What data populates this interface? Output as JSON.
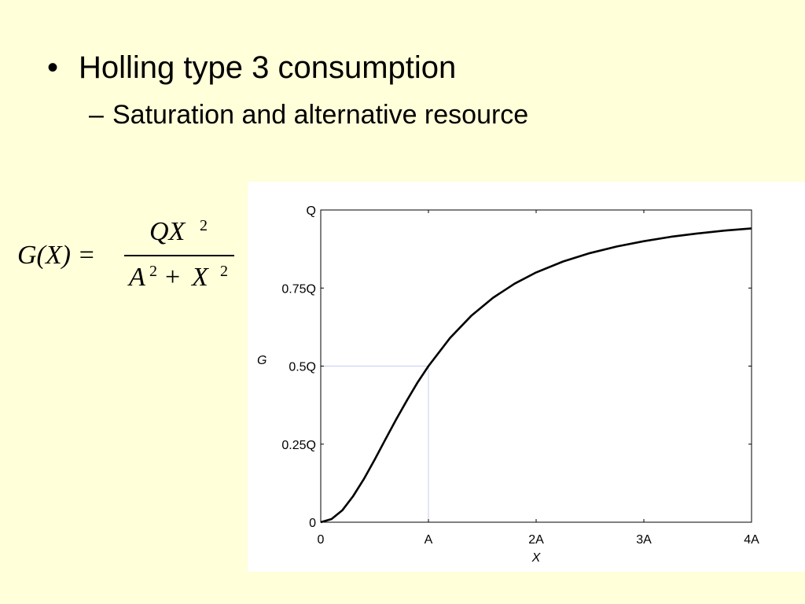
{
  "slide": {
    "bullet": "Holling type 3 consumption",
    "sub_bullet": "Saturation and alternative resource",
    "bullet_marker": "•",
    "sub_marker": "–"
  },
  "formula": {
    "lhs": "G(X) =",
    "numerator": "QX",
    "numerator_exp": "2",
    "denom_a": "A",
    "denom_a_exp": "2",
    "denom_plus": "+",
    "denom_x": "X",
    "denom_x_exp": "2"
  },
  "chart_data": {
    "type": "line",
    "xlabel": "X",
    "ylabel": "G",
    "xlim": [
      0,
      4
    ],
    "ylim": [
      0,
      1
    ],
    "x_ticks": [
      0,
      1,
      2,
      3,
      4
    ],
    "x_tick_labels": [
      "0",
      "A",
      "2A",
      "3A",
      "4A"
    ],
    "y_ticks": [
      0,
      0.25,
      0.5,
      0.75,
      1
    ],
    "y_tick_labels": [
      "0",
      "0.25Q",
      "0.5Q",
      "0.75Q",
      "Q"
    ],
    "series": [
      {
        "x": [
          0,
          0.1,
          0.2,
          0.3,
          0.4,
          0.5,
          0.6,
          0.7,
          0.8,
          0.9,
          1.0,
          1.2,
          1.4,
          1.6,
          1.8,
          2.0,
          2.25,
          2.5,
          2.75,
          3.0,
          3.25,
          3.5,
          3.75,
          4.0
        ],
        "values": [
          0,
          0.01,
          0.038,
          0.083,
          0.138,
          0.2,
          0.265,
          0.329,
          0.39,
          0.448,
          0.5,
          0.59,
          0.662,
          0.719,
          0.764,
          0.8,
          0.835,
          0.862,
          0.883,
          0.9,
          0.914,
          0.925,
          0.934,
          0.941
        ],
        "color": "#000000"
      }
    ],
    "reference_point": {
      "x": 1,
      "y": 0.5,
      "color": "#c8cdf0"
    },
    "grid": false
  }
}
